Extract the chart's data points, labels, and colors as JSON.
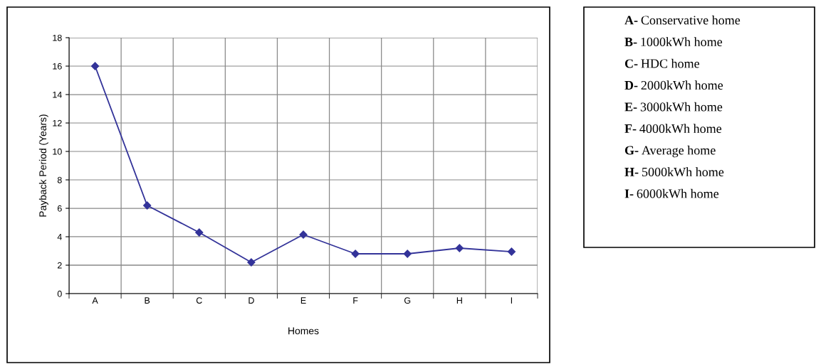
{
  "chart_data": {
    "type": "line",
    "xlabel": "Homes",
    "ylabel": "Payback Period (Years)",
    "categories": [
      "A",
      "B",
      "C",
      "D",
      "E",
      "F",
      "G",
      "H",
      "I"
    ],
    "series": [
      {
        "color": "#333399",
        "values": [
          16,
          6.2,
          4.3,
          2.2,
          4.15,
          2.8,
          2.8,
          3.2,
          2.95
        ]
      }
    ],
    "ylim": [
      0,
      18
    ],
    "yticks": [
      0,
      2,
      4,
      6,
      8,
      10,
      12,
      14,
      16,
      18
    ],
    "grid": true,
    "marker": "diamond",
    "line_style": "solid",
    "annotations": [
      "A- Conservative home",
      "B- 1000kWh home",
      "C- HDC home",
      "D- 2000kWh home",
      "E- 3000kWh home",
      "F- 4000kWh home",
      "G- Average home",
      "H- 5000kWh home",
      "I-  6000kWh home"
    ]
  }
}
